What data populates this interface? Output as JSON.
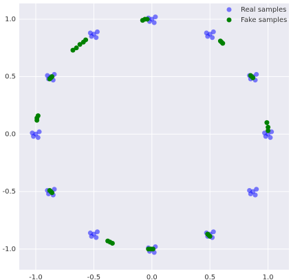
{
  "chart_data": {
    "type": "scatter",
    "xlim": [
      -1.142,
      1.18
    ],
    "ylim": [
      -1.18,
      1.137
    ],
    "xticks": [
      {
        "value": -1,
        "label": "-1.0"
      },
      {
        "value": -0.5,
        "label": "-0.5"
      },
      {
        "value": 0,
        "label": "0.0"
      },
      {
        "value": 0.5,
        "label": "0.5"
      },
      {
        "value": 1,
        "label": "1.0"
      }
    ],
    "yticks": [
      {
        "value": -1,
        "label": "-1.0"
      },
      {
        "value": -0.5,
        "label": "-0.5"
      },
      {
        "value": 0,
        "label": "0.0"
      },
      {
        "value": 0.5,
        "label": "0.5"
      },
      {
        "value": 1,
        "label": "1.0"
      }
    ],
    "grid": true,
    "legend": "upper right",
    "series": [
      {
        "name": "Real samples",
        "color": "#0000ff",
        "opacity": 0.5,
        "x": [
          1.0,
          1.03,
          0.97,
          1.02,
          0.98,
          0.87,
          0.9,
          0.84,
          0.89,
          0.85,
          0.5,
          0.53,
          0.47,
          0.52,
          0.48,
          0,
          0.03,
          -0.03,
          0.02,
          -0.02,
          -0.5,
          -0.47,
          -0.53,
          -0.48,
          -0.52,
          -0.87,
          -0.84,
          -0.9,
          -0.85,
          -0.89,
          -1,
          -0.97,
          -1.03,
          -0.98,
          -1.02,
          -0.87,
          -0.84,
          -0.9,
          -0.85,
          -0.89,
          -0.5,
          -0.47,
          -0.53,
          -0.48,
          -0.52,
          0,
          0.03,
          -0.03,
          0.02,
          -0.02,
          0.5,
          0.53,
          0.47,
          0.52,
          0.48,
          0.87,
          0.9,
          0.84,
          0.89,
          0.85
        ],
        "y": [
          0,
          0.02,
          0.01,
          -0.03,
          -0.02,
          0.5,
          0.52,
          0.51,
          0.47,
          0.48,
          0.87,
          0.89,
          0.88,
          0.84,
          0.85,
          1,
          1.02,
          1.01,
          0.97,
          0.98,
          0.87,
          0.89,
          0.88,
          0.84,
          0.85,
          0.5,
          0.52,
          0.51,
          0.47,
          0.48,
          0,
          0.02,
          0.01,
          -0.03,
          -0.02,
          -0.5,
          -0.48,
          -0.49,
          -0.53,
          -0.52,
          -0.87,
          -0.85,
          -0.86,
          -0.9,
          -0.89,
          -1,
          -0.98,
          -0.99,
          -1.03,
          -1.02,
          -0.87,
          -0.85,
          -0.86,
          -0.9,
          -0.89,
          -0.5,
          -0.48,
          -0.49,
          -0.53,
          -0.52
        ]
      },
      {
        "name": "Fake samples",
        "color": "#008000",
        "opacity": 1,
        "x": [
          -0.08,
          -0.06,
          -0.04,
          0.59,
          0.6,
          0.61,
          0.85,
          0.86,
          0.87,
          0.99,
          1.0,
          1.0,
          0.48,
          0.49,
          0.5,
          -0.03,
          -0.01,
          0.01,
          -0.38,
          -0.36,
          -0.34,
          -0.88,
          -0.87,
          -0.86,
          -0.99,
          -0.99,
          -0.98,
          -0.88,
          -0.87,
          -0.86,
          -0.68,
          -0.65,
          -0.62,
          -0.59,
          -0.57
        ],
        "y": [
          0.99,
          1.0,
          1.0,
          0.81,
          0.8,
          0.79,
          0.51,
          0.5,
          0.49,
          0.1,
          0.06,
          0.03,
          -0.87,
          -0.88,
          -0.89,
          -1.0,
          -1.0,
          -1.0,
          -0.93,
          -0.94,
          -0.95,
          -0.49,
          -0.5,
          -0.51,
          0.12,
          0.14,
          0.16,
          0.48,
          0.49,
          0.5,
          0.73,
          0.75,
          0.78,
          0.8,
          0.82
        ]
      }
    ]
  }
}
